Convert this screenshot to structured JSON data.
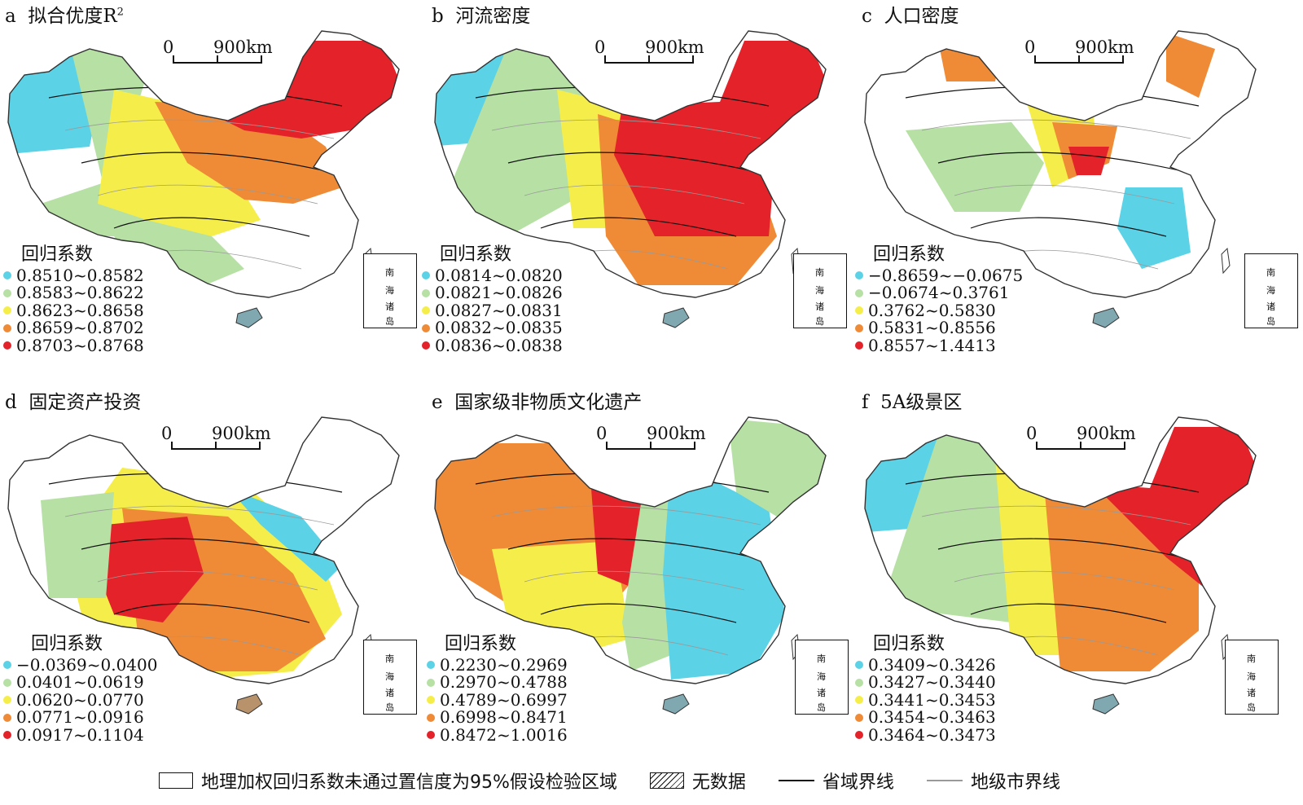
{
  "colors": {
    "class1": "#5bd2e6",
    "class2": "#b6e0a4",
    "class3": "#f5ee4a",
    "class4": "#ef8a36",
    "class5": "#e3222a",
    "province_border": "#111111",
    "city_border": "#9a9a9a"
  },
  "scale_bar": {
    "zero": "0",
    "distance": "900km"
  },
  "inset": {
    "label_1": "南",
    "label_2": "海",
    "label_3": "诸",
    "label_4": "岛"
  },
  "panels": [
    {
      "letter": "a",
      "title": "拟合优度R",
      "title_sup": "2",
      "legend_title": "回归系数",
      "ranges": [
        "0.8510~0.8582",
        "0.8583~0.8622",
        "0.8623~0.8658",
        "0.8659~0.8702",
        "0.8703~0.8768"
      ]
    },
    {
      "letter": "b",
      "title": "河流密度",
      "title_sup": "",
      "legend_title": "回归系数",
      "ranges": [
        "0.0814~0.0820",
        "0.0821~0.0826",
        "0.0827~0.0831",
        "0.0832~0.0835",
        "0.0836~0.0838"
      ]
    },
    {
      "letter": "c",
      "title": "人口密度",
      "title_sup": "",
      "legend_title": "回归系数",
      "ranges": [
        "−0.8659~−0.0675",
        "−0.0674~0.3761",
        "0.3762~0.5830",
        "0.5831~0.8556",
        "0.8557~1.4413"
      ]
    },
    {
      "letter": "d",
      "title": "固定资产投资",
      "title_sup": "",
      "legend_title": "回归系数",
      "ranges": [
        "−0.0369~0.0400",
        "0.0401~0.0619",
        "0.0620~0.0770",
        "0.0771~0.0916",
        "0.0917~0.1104"
      ]
    },
    {
      "letter": "e",
      "title": "国家级非物质文化遗产",
      "title_sup": "",
      "legend_title": "回归系数",
      "ranges": [
        "0.2230~0.2969",
        "0.2970~0.4788",
        "0.4789~0.6997",
        "0.6998~0.8471",
        "0.8472~1.0016"
      ]
    },
    {
      "letter": "f",
      "title": "5A级景区",
      "title_sup": "",
      "legend_title": "回归系数",
      "ranges": [
        "0.3409~0.3426",
        "0.3427~0.3440",
        "0.3441~0.3453",
        "0.3454~0.3463",
        "0.3464~0.3473"
      ]
    }
  ],
  "bottom_legend": {
    "not_significant": "地理加权回归系数未通过置信度为95%假设检验区域",
    "no_data": "无数据",
    "province_line": "省域界线",
    "city_line": "地级市界线"
  }
}
